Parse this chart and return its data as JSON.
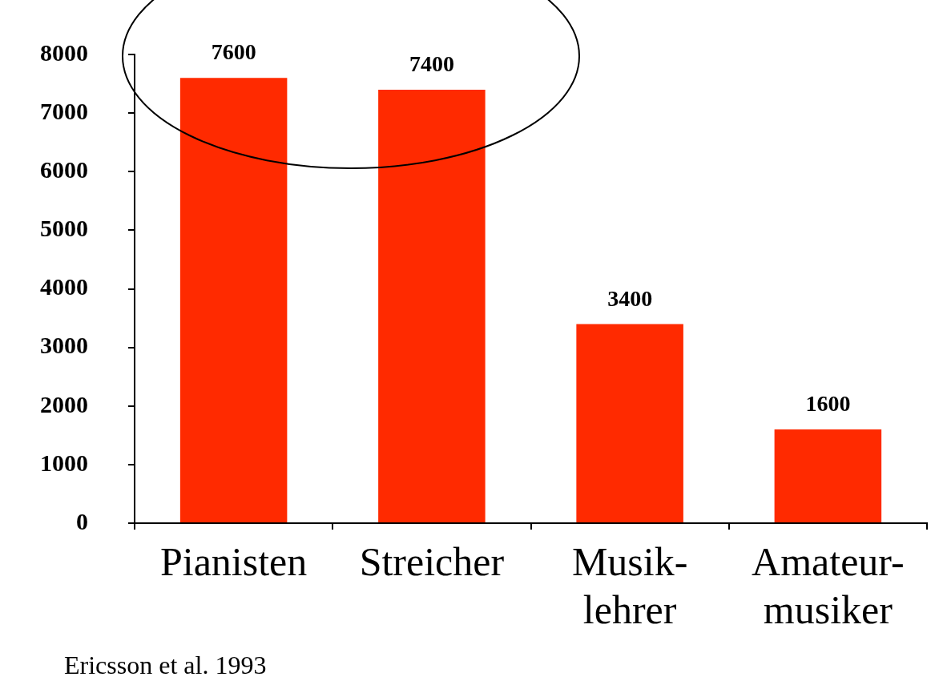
{
  "chart_data": {
    "type": "bar",
    "categories": [
      "Pianisten",
      "Streicher",
      "Musik-\nlehrer",
      "Amateur-\nmusiker"
    ],
    "values": [
      7600,
      7400,
      3400,
      1600
    ],
    "color": "#ff2a00",
    "ylim": [
      0,
      8000
    ],
    "yticks": [
      0,
      1000,
      2000,
      3000,
      4000,
      5000,
      6000,
      7000,
      8000
    ],
    "grid": false,
    "legend": false,
    "data_labels": true,
    "annotations": [
      "Ericsson et al. 1993"
    ]
  }
}
